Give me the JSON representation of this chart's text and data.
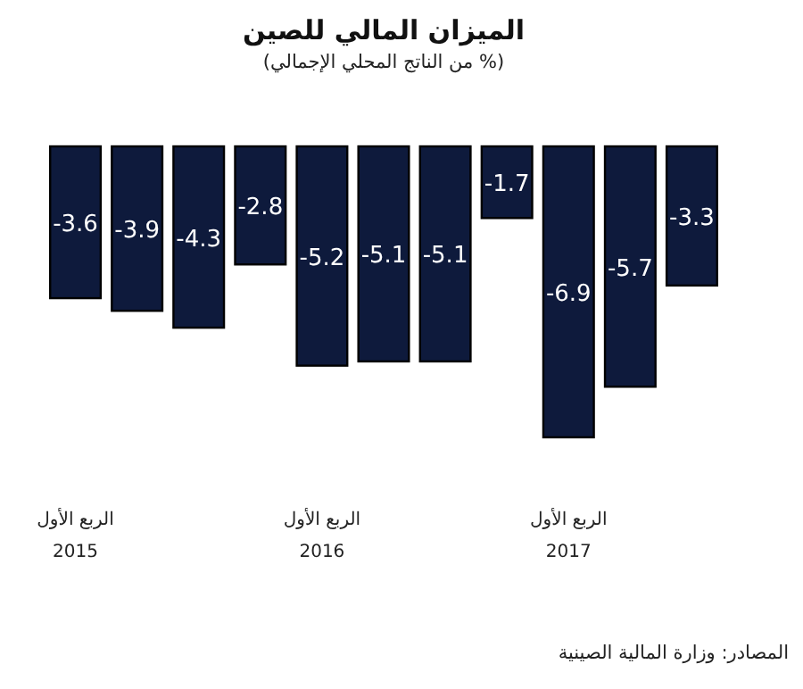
{
  "chart_data": {
    "type": "bar",
    "title": "الميزان المالي للصين",
    "subtitle": "(% من الناتج المحلي الإجمالي)",
    "categories": [
      "الربع الأول 2015",
      null,
      null,
      null,
      "الربع الأول 2016",
      null,
      null,
      null,
      "الربع الأول 2017",
      null,
      null
    ],
    "values": [
      -3.6,
      -3.9,
      -4.3,
      -2.8,
      -5.2,
      -5.1,
      -5.1,
      -1.7,
      -6.9,
      -5.7,
      -3.3
    ],
    "color": "#0e1a3c",
    "data_labels": true,
    "annotations": [
      "المصادر: وزارة المالية الصينية"
    ]
  }
}
